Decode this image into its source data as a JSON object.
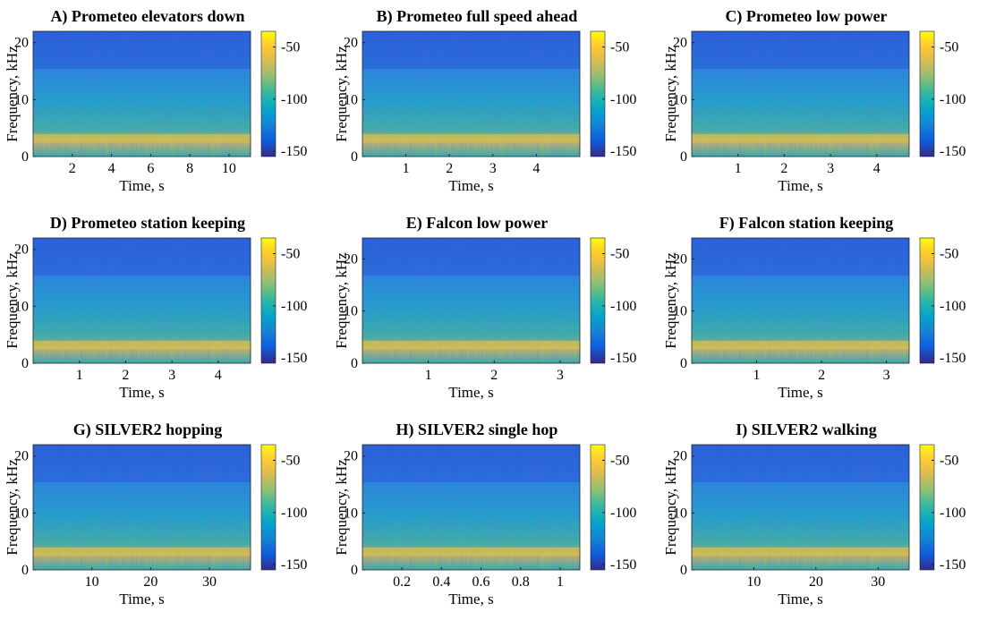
{
  "chart_data": [
    {
      "type": "spectrogram",
      "title": "A) Prometeo elevators down",
      "xlabel": "Time, s",
      "ylabel": "Frequency, kHz",
      "xlim": [
        0,
        11.1
      ],
      "xticks": [
        2,
        4,
        6,
        8,
        10
      ],
      "ylim": [
        0,
        22
      ],
      "yticks": [
        0,
        10,
        20
      ],
      "colormap": "parula",
      "clim": [
        -155,
        -35
      ],
      "cticks": [
        -150,
        -100,
        -50
      ]
    },
    {
      "type": "spectrogram",
      "title": "B) Prometeo full speed ahead",
      "xlabel": "Time, s",
      "ylabel": "Frequency, kHz",
      "xlim": [
        0,
        5
      ],
      "xticks": [
        1,
        2,
        3,
        4
      ],
      "ylim": [
        0,
        22
      ],
      "yticks": [
        0,
        10,
        20
      ],
      "colormap": "parula",
      "clim": [
        -155,
        -35
      ],
      "cticks": [
        -150,
        -100,
        -50
      ]
    },
    {
      "type": "spectrogram",
      "title": "C) Prometeo low power",
      "xlabel": "Time, s",
      "ylabel": "Frequency, kHz",
      "xlim": [
        0,
        4.7
      ],
      "xticks": [
        1,
        2,
        3,
        4
      ],
      "ylim": [
        0,
        22
      ],
      "yticks": [
        0,
        10,
        20
      ],
      "colormap": "parula",
      "clim": [
        -155,
        -35
      ],
      "cticks": [
        -150,
        -100,
        -50
      ]
    },
    {
      "type": "spectrogram",
      "title": "D) Prometeo station keeping",
      "xlabel": "Time, s",
      "ylabel": "Frequency, kHz",
      "xlim": [
        0,
        4.7
      ],
      "xticks": [
        1,
        2,
        3,
        4
      ],
      "ylim": [
        0,
        22
      ],
      "yticks": [
        0,
        10,
        20
      ],
      "colormap": "parula",
      "clim": [
        -155,
        -35
      ],
      "cticks": [
        -150,
        -100,
        -50
      ]
    },
    {
      "type": "spectrogram",
      "title": "E) Falcon low power",
      "xlabel": "Time, s",
      "ylabel": "Frequency, kHz",
      "xlim": [
        0,
        3.3
      ],
      "xticks": [
        1,
        2,
        3
      ],
      "ylim": [
        0,
        24
      ],
      "yticks": [
        0,
        10,
        20
      ],
      "colormap": "parula",
      "clim": [
        -155,
        -35
      ],
      "cticks": [
        -150,
        -100,
        -50
      ]
    },
    {
      "type": "spectrogram",
      "title": "F) Falcon station keeping",
      "xlabel": "Time, s",
      "ylabel": "Frequency, kHz",
      "xlim": [
        0,
        3.35
      ],
      "xticks": [
        1,
        2,
        3
      ],
      "ylim": [
        0,
        24
      ],
      "yticks": [
        0,
        10,
        20
      ],
      "colormap": "parula",
      "clim": [
        -155,
        -35
      ],
      "cticks": [
        -150,
        -100,
        -50
      ]
    },
    {
      "type": "spectrogram",
      "title": "G) SILVER2 hopping",
      "xlabel": "Time, s",
      "ylabel": "Frequency, kHz",
      "xlim": [
        0,
        37
      ],
      "xticks": [
        10,
        20,
        30
      ],
      "ylim": [
        0,
        22
      ],
      "yticks": [
        0,
        10,
        20
      ],
      "colormap": "parula",
      "clim": [
        -155,
        -35
      ],
      "cticks": [
        -150,
        -100,
        -50
      ]
    },
    {
      "type": "spectrogram",
      "title": "H) SILVER2 single hop",
      "xlabel": "Time, s",
      "ylabel": "Frequency, kHz",
      "xlim": [
        0,
        1.1
      ],
      "xticks": [
        0.2,
        0.4,
        0.6,
        0.8,
        1
      ],
      "ylim": [
        0,
        22
      ],
      "yticks": [
        0,
        10,
        20
      ],
      "colormap": "parula",
      "clim": [
        -155,
        -35
      ],
      "cticks": [
        -150,
        -100,
        -50
      ]
    },
    {
      "type": "spectrogram",
      "title": "I) SILVER2 walking",
      "xlabel": "Time, s",
      "ylabel": "Frequency, kHz",
      "xlim": [
        0,
        35
      ],
      "xticks": [
        10,
        20,
        30
      ],
      "ylim": [
        0,
        22
      ],
      "yticks": [
        0,
        10,
        20
      ],
      "colormap": "parula",
      "clim": [
        -155,
        -35
      ],
      "cticks": [
        -150,
        -100,
        -50
      ]
    }
  ]
}
